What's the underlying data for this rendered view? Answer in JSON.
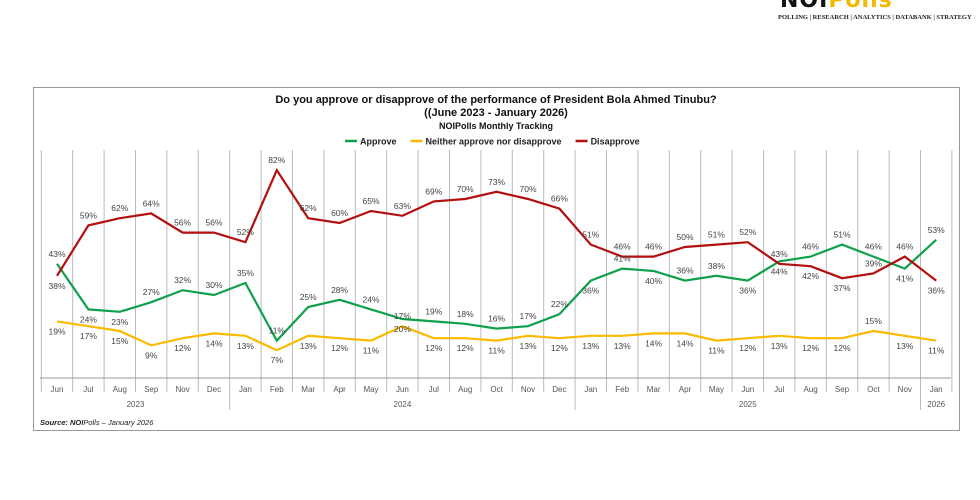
{
  "logo": {
    "text_a": "NOI",
    "text_b": "Polls",
    "tagline": "POLLING | RESEARCH | ANALYTICS | DATABANK | STRATEGY"
  },
  "source": {
    "label": "Source: NOI",
    "brand": "Polls",
    "date": "  –  January 2026"
  },
  "chart_data": {
    "type": "line",
    "title": "Do you approve or disapprove of the performance of President Bola Ahmed Tinubu?",
    "subtitle": "((June 2023 - January  2026)",
    "subtitle2": "NOIPolls Monthly Tracking",
    "legend_position": "top",
    "categories": [
      "Jun",
      "Jul",
      "Aug",
      "Sep",
      "Nov",
      "Dec",
      "Jan",
      "Feb",
      "Mar",
      "Apr",
      "May",
      "Jun",
      "Jul",
      "Aug",
      "Oct",
      "Nov",
      "Dec",
      "Jan",
      "Feb",
      "Mar",
      "Apr",
      "May",
      "Jun",
      "Jul",
      "Aug",
      "Sep",
      "Oct",
      "Nov",
      "Jan"
    ],
    "years": [
      {
        "label": "2023",
        "span": 6
      },
      {
        "label": "2024",
        "span": 11
      },
      {
        "label": "2025",
        "span": 11
      },
      {
        "label": "2026",
        "span": 1
      }
    ],
    "unit": "%",
    "series": [
      {
        "name": "Approve",
        "color": "#0fa14a",
        "values": [
          43,
          24,
          23,
          27,
          32,
          30,
          35,
          11,
          25,
          28,
          24,
          20,
          19,
          18,
          16,
          17,
          22,
          36,
          41,
          40,
          36,
          38,
          36,
          44,
          46,
          51,
          46,
          41,
          53
        ]
      },
      {
        "name": "Neither approve nor disapprove",
        "color": "#fbb900",
        "values": [
          19,
          17,
          15,
          9,
          12,
          14,
          13,
          7,
          13,
          12,
          11,
          17,
          12,
          12,
          11,
          13,
          12,
          13,
          13,
          14,
          14,
          11,
          12,
          13,
          12,
          12,
          15,
          13,
          11
        ]
      },
      {
        "name": "Disapprove",
        "color": "#b40f0f",
        "values": [
          38,
          59,
          62,
          64,
          56,
          56,
          52,
          82,
          62,
          60,
          65,
          63,
          69,
          70,
          73,
          70,
          66,
          51,
          46,
          46,
          50,
          51,
          52,
          43,
          42,
          37,
          39,
          46,
          36
        ]
      }
    ],
    "label_side": [
      [
        "a",
        "b",
        "b",
        "a",
        "a",
        "a",
        "a",
        "a",
        "a",
        "a",
        "a",
        "b",
        "a",
        "a",
        "a",
        "a",
        "a",
        "b",
        "a",
        "b",
        "a",
        "a",
        "b",
        "b",
        "a",
        "a",
        "a",
        "b",
        "a"
      ],
      [
        "b",
        "b",
        "b",
        "b",
        "b",
        "b",
        "b",
        "b",
        "b",
        "b",
        "b",
        "a",
        "b",
        "b",
        "b",
        "b",
        "b",
        "b",
        "b",
        "b",
        "b",
        "b",
        "b",
        "b",
        "b",
        "b",
        "a",
        "b",
        "b"
      ],
      [
        "b",
        "a",
        "a",
        "a",
        "a",
        "a",
        "a",
        "a",
        "a",
        "a",
        "a",
        "a",
        "a",
        "a",
        "a",
        "a",
        "a",
        "a",
        "a",
        "a",
        "a",
        "a",
        "a",
        "a",
        "b",
        "b",
        "a",
        "a",
        "b"
      ]
    ]
  }
}
